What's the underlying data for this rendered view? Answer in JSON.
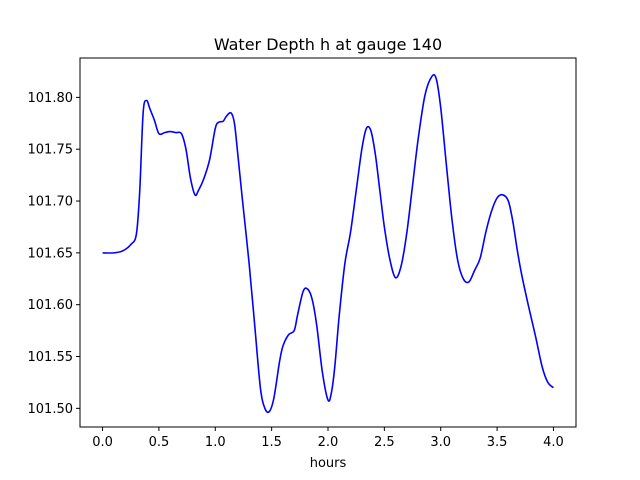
{
  "chart_data": {
    "type": "line",
    "title": "Water Depth h at gauge 140",
    "xlabel": "hours",
    "ylabel": "",
    "xlim": [
      -0.2,
      4.2
    ],
    "ylim": [
      101.482,
      101.838
    ],
    "xticks": [
      0.0,
      0.5,
      1.0,
      1.5,
      2.0,
      2.5,
      3.0,
      3.5,
      4.0
    ],
    "xtick_labels": [
      "0.0",
      "0.5",
      "1.0",
      "1.5",
      "2.0",
      "2.5",
      "3.0",
      "3.5",
      "4.0"
    ],
    "yticks": [
      101.5,
      101.55,
      101.6,
      101.65,
      101.7,
      101.75,
      101.8
    ],
    "ytick_labels": [
      "101.50",
      "101.55",
      "101.60",
      "101.65",
      "101.70",
      "101.75",
      "101.80"
    ],
    "grid": false,
    "series": [
      {
        "color": "#0000ff",
        "x": [
          0.0,
          0.1,
          0.18,
          0.25,
          0.3,
          0.33,
          0.36,
          0.39,
          0.42,
          0.46,
          0.5,
          0.55,
          0.6,
          0.65,
          0.7,
          0.74,
          0.78,
          0.82,
          0.85,
          0.9,
          0.95,
          1.0,
          1.03,
          1.07,
          1.1,
          1.14,
          1.17,
          1.2,
          1.24,
          1.3,
          1.35,
          1.4,
          1.44,
          1.48,
          1.52,
          1.57,
          1.6,
          1.65,
          1.7,
          1.73,
          1.78,
          1.82,
          1.86,
          1.9,
          1.95,
          2.0,
          2.03,
          2.06,
          2.1,
          2.15,
          2.2,
          2.25,
          2.3,
          2.34,
          2.38,
          2.42,
          2.46,
          2.5,
          2.55,
          2.6,
          2.65,
          2.7,
          2.75,
          2.8,
          2.86,
          2.92,
          2.96,
          3.0,
          3.05,
          3.1,
          3.15,
          3.2,
          3.25,
          3.3,
          3.35,
          3.4,
          3.45,
          3.5,
          3.55,
          3.6,
          3.64,
          3.68,
          3.72,
          3.78,
          3.84,
          3.9,
          3.95,
          4.0
        ],
        "values": [
          101.65,
          101.65,
          101.652,
          101.658,
          101.668,
          101.71,
          101.785,
          101.797,
          101.789,
          101.778,
          101.765,
          101.766,
          101.767,
          101.766,
          101.765,
          101.75,
          101.722,
          101.706,
          101.71,
          101.722,
          101.74,
          101.77,
          101.776,
          101.777,
          101.782,
          101.785,
          101.775,
          101.745,
          101.702,
          101.64,
          101.58,
          101.52,
          101.5,
          101.497,
          101.51,
          101.545,
          101.56,
          101.571,
          101.575,
          101.59,
          101.613,
          101.615,
          101.605,
          101.58,
          101.535,
          101.508,
          101.515,
          101.54,
          101.59,
          101.64,
          101.67,
          101.71,
          101.75,
          101.77,
          101.768,
          101.745,
          101.71,
          101.675,
          101.643,
          101.626,
          101.638,
          101.67,
          101.715,
          101.76,
          101.802,
          101.82,
          101.818,
          101.79,
          101.735,
          101.682,
          101.643,
          101.625,
          101.622,
          101.633,
          101.645,
          101.67,
          101.69,
          101.703,
          101.706,
          101.7,
          101.68,
          101.652,
          101.628,
          101.598,
          101.57,
          101.54,
          101.525,
          101.52
        ]
      }
    ]
  }
}
